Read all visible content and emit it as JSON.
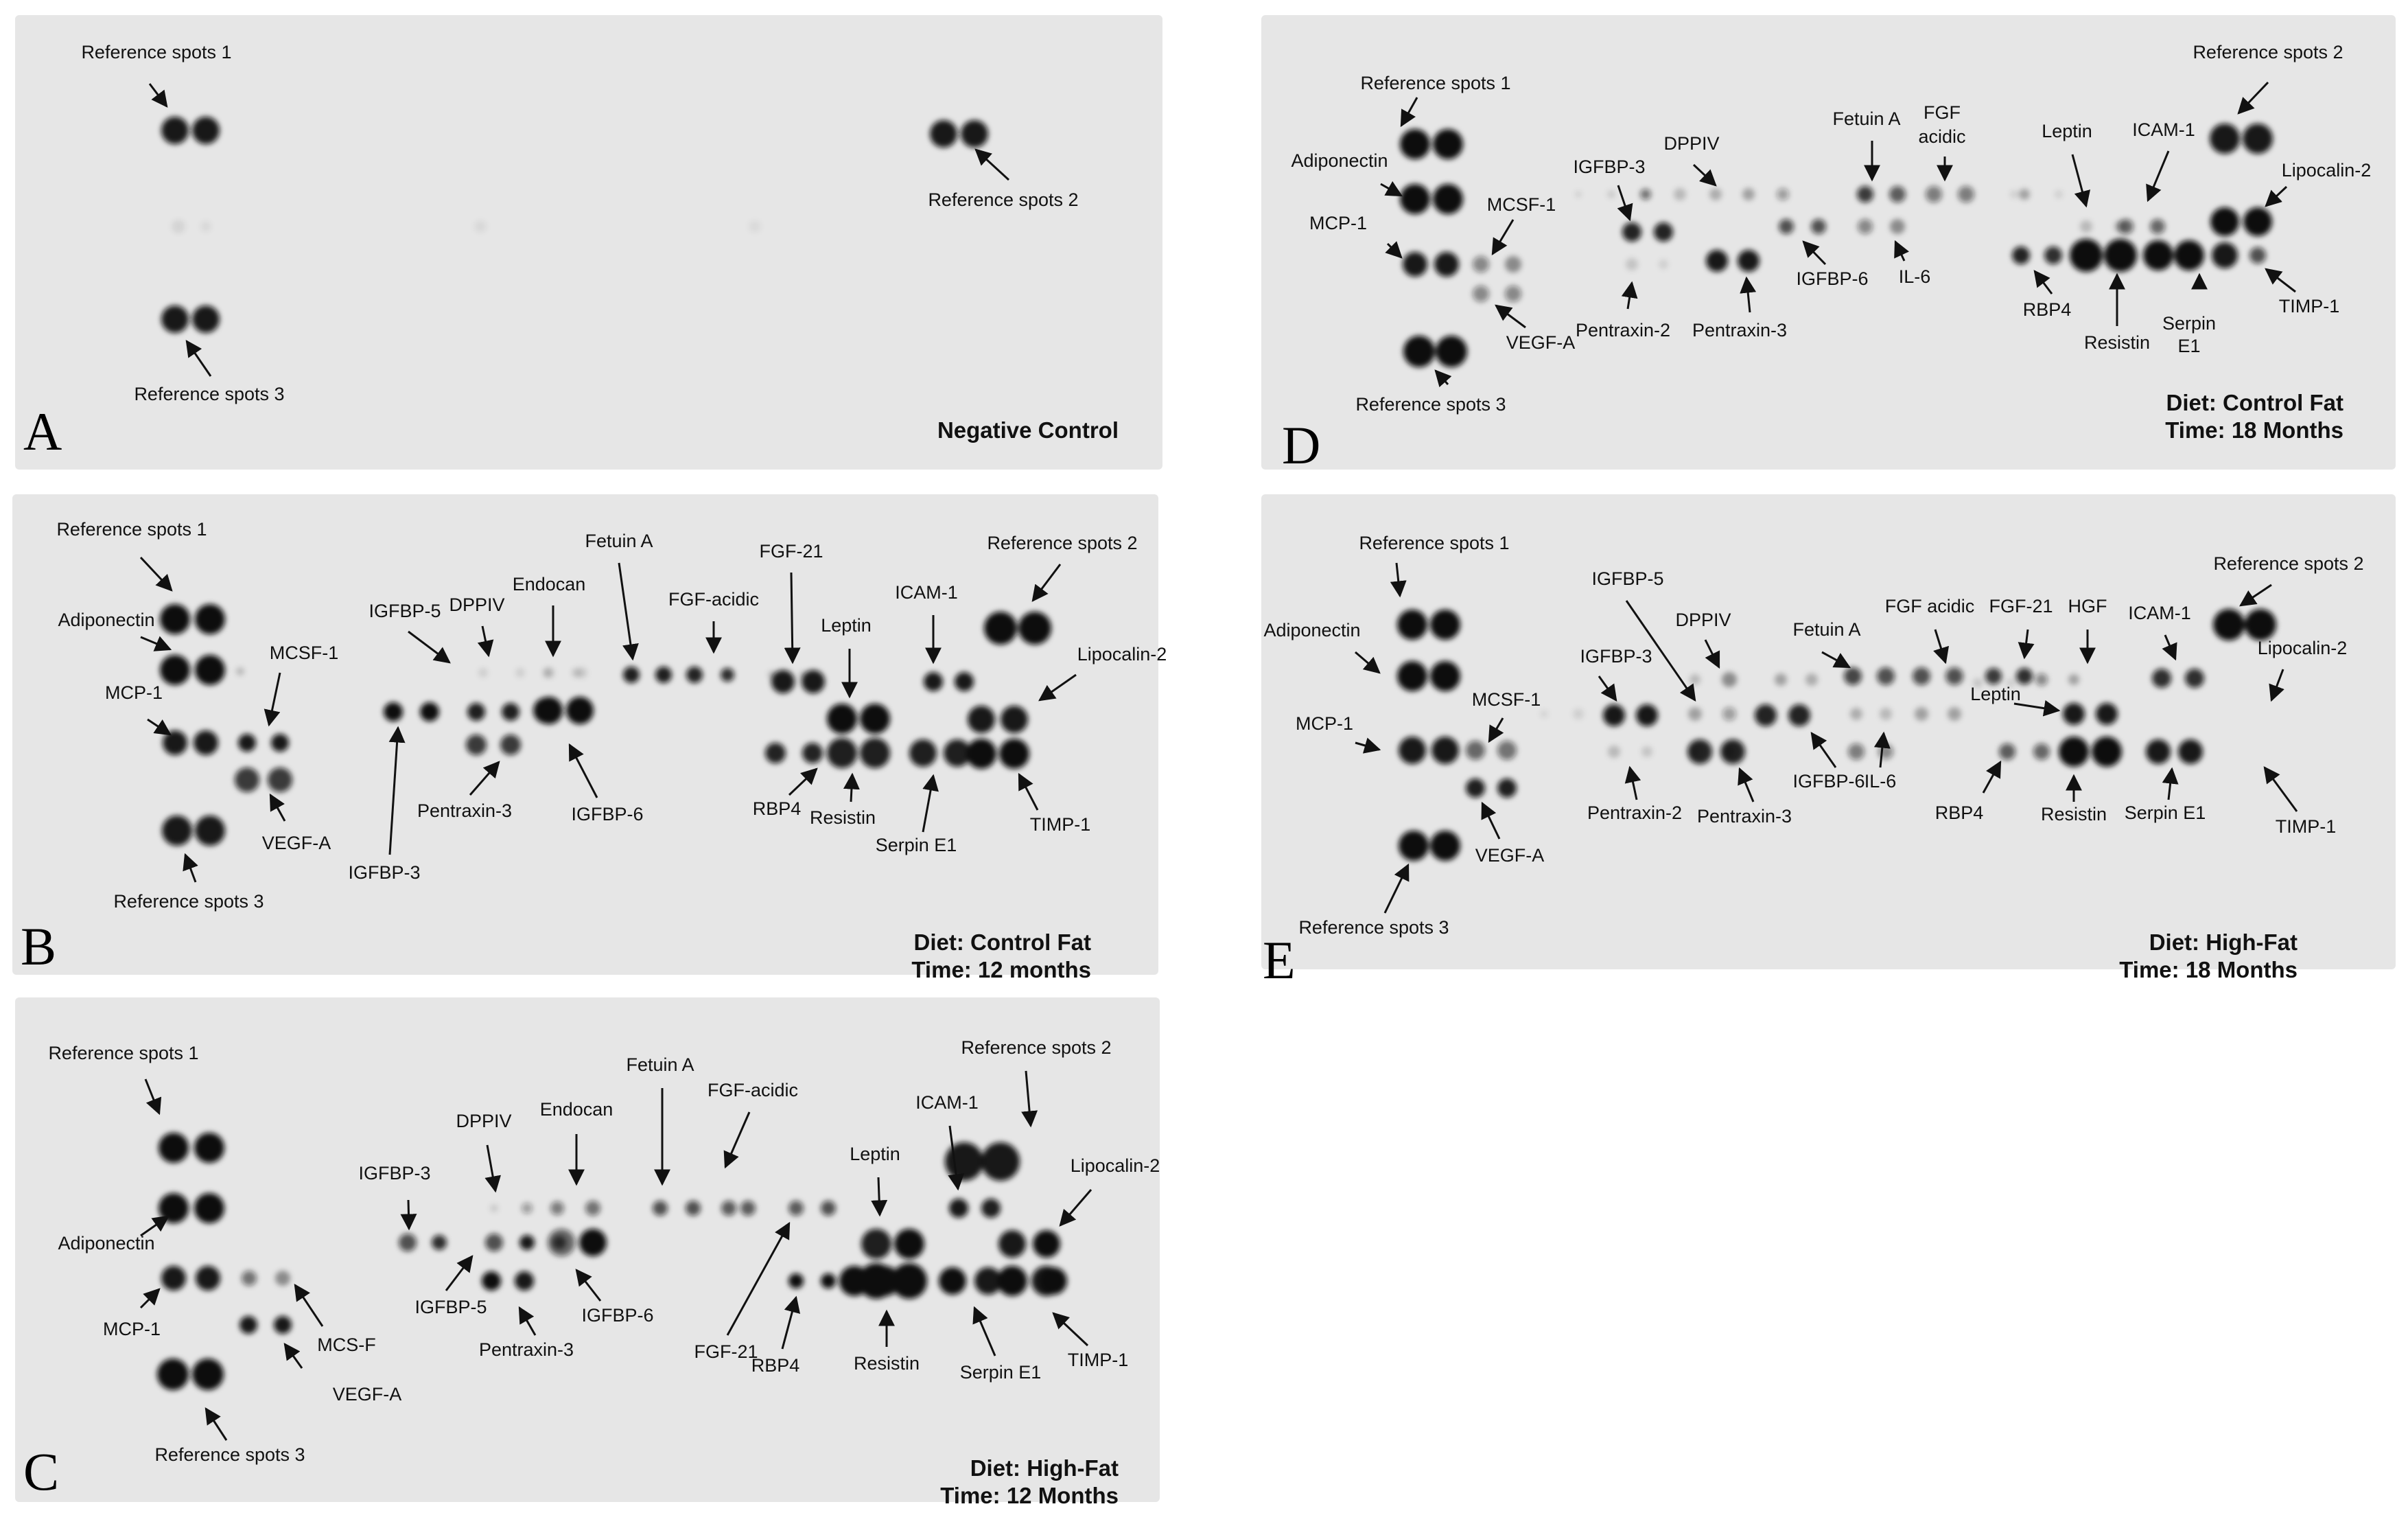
{
  "figure": {
    "colors": {
      "membrane": "#e6e6e6",
      "spot": "#101010",
      "arrow": "#111111",
      "text": "#111111",
      "page": "#ffffff"
    },
    "panels": [
      {
        "letter": "A",
        "caption_lines": [
          "Negative Control"
        ],
        "spots": [
          {
            "i": 0.95
          },
          {
            "i": 0.95
          },
          {
            "i": 0.95
          },
          {
            "i": 0.95
          },
          {
            "i": 0.95
          },
          {
            "i": 0.95
          },
          {
            "i": 0.08
          },
          {
            "i": 0.06
          },
          {
            "i": 0.06
          },
          {
            "i": 0.05
          }
        ],
        "labels": [
          {
            "text": "Reference spots 1"
          },
          {
            "text": "Reference spots 2"
          },
          {
            "text": "Reference spots 3"
          }
        ]
      },
      {
        "letter": "B",
        "caption_lines": [
          "Diet: Control Fat",
          "Time: 12 months"
        ],
        "spots": [
          {
            "i": 1
          },
          {
            "i": 1
          },
          {
            "i": 1
          },
          {
            "i": 1
          },
          {
            "i": 0.95
          },
          {
            "i": 0.95
          },
          {
            "i": 0.2
          },
          {
            "i": 0.95
          },
          {
            "i": 0.95
          },
          {
            "i": 0.8
          },
          {
            "i": 0.8
          },
          {
            "i": 0.95
          },
          {
            "i": 0.95
          },
          {
            "i": 1
          },
          {
            "i": 1
          },
          {
            "i": 0.1
          },
          {
            "i": 0.1
          },
          {
            "i": 0.12
          },
          {
            "i": 0.12
          },
          {
            "i": 0.15
          },
          {
            "i": 0.15
          },
          {
            "i": 0.92
          },
          {
            "i": 0.92
          },
          {
            "i": 0.8
          },
          {
            "i": 0.8
          },
          {
            "i": 0.95
          },
          {
            "i": 0.95
          },
          {
            "i": 1
          },
          {
            "i": 1
          },
          {
            "i": 0.92
          },
          {
            "i": 0.92
          },
          {
            "i": 0.9
          },
          {
            "i": 0.85
          },
          {
            "i": 0.2
          },
          {
            "i": 0.15
          },
          {
            "i": 0.95
          },
          {
            "i": 0.95
          },
          {
            "i": 0.95
          },
          {
            "i": 0.95
          },
          {
            "i": 0.9
          },
          {
            "i": 0.9
          },
          {
            "i": 1
          },
          {
            "i": 1
          },
          {
            "i": 0.92
          },
          {
            "i": 0.92
          },
          {
            "i": 0.92
          },
          {
            "i": 0.92
          },
          {
            "i": 1
          },
          {
            "i": 1
          },
          {
            "i": 0.95
          },
          {
            "i": 0.95
          },
          {
            "i": 1
          },
          {
            "i": 1
          }
        ],
        "labels": [
          {
            "text": "Reference spots 1"
          },
          {
            "text": "Adiponectin"
          },
          {
            "text": "MCP-1"
          },
          {
            "text": "MCSF-1"
          },
          {
            "text": "VEGF-A"
          },
          {
            "text": "Reference spots 3"
          },
          {
            "text": "IGFBP-5"
          },
          {
            "text": "DPPIV"
          },
          {
            "text": "Endocan"
          },
          {
            "text": "Fetuin A"
          },
          {
            "text": "FGF-acidic"
          },
          {
            "text": "FGF-21"
          },
          {
            "text": "Leptin"
          },
          {
            "text": "ICAM-1"
          },
          {
            "text": "Reference spots 2"
          },
          {
            "text": "Lipocalin-2"
          },
          {
            "text": "IGFBP-3"
          },
          {
            "text": "Pentraxin-3"
          },
          {
            "text": "IGFBP-6"
          },
          {
            "text": "RBP4"
          },
          {
            "text": "Resistin"
          },
          {
            "text": "Serpin E1"
          },
          {
            "text": "TIMP-1"
          }
        ]
      },
      {
        "letter": "C",
        "caption_lines": [
          "Diet: High-Fat",
          "Time: 12 Months"
        ],
        "spots": [
          {
            "i": 1
          },
          {
            "i": 1
          },
          {
            "i": 1
          },
          {
            "i": 1
          },
          {
            "i": 0.95
          },
          {
            "i": 0.95
          },
          {
            "i": 0.55
          },
          {
            "i": 0.4
          },
          {
            "i": 0.95
          },
          {
            "i": 0.95
          },
          {
            "i": 1
          },
          {
            "i": 1
          },
          {
            "i": 0.12
          },
          {
            "i": 0.35
          },
          {
            "i": 0.5
          },
          {
            "i": 0.55
          },
          {
            "i": 0.7
          },
          {
            "i": 0.7
          },
          {
            "i": 0.65
          },
          {
            "i": 0.65
          },
          {
            "i": 0.65
          },
          {
            "i": 0.7
          },
          {
            "i": 0.7
          },
          {
            "i": 0.85
          },
          {
            "i": 0.7
          },
          {
            "i": 0.95
          },
          {
            "i": 0.7
          },
          {
            "i": 0.6
          },
          {
            "i": 1
          },
          {
            "i": 1
          },
          {
            "i": 0.95
          },
          {
            "i": 0.95
          },
          {
            "i": 0.95
          },
          {
            "i": 0.95
          },
          {
            "i": 0.92
          },
          {
            "i": 0.92
          },
          {
            "i": 1
          },
          {
            "i": 1
          },
          {
            "i": 1
          },
          {
            "i": 1
          },
          {
            "i": 1
          },
          {
            "i": 1
          },
          {
            "i": 0.95
          },
          {
            "i": 0.95
          },
          {
            "i": 1
          },
          {
            "i": 1
          },
          {
            "i": 0.95
          },
          {
            "i": 0.95
          },
          {
            "i": 1
          },
          {
            "i": 1
          }
        ],
        "labels": [
          {
            "text": "Reference spots 1"
          },
          {
            "text": "Adiponectin"
          },
          {
            "text": "MCP-1"
          },
          {
            "text": "MCS-F"
          },
          {
            "text": "VEGF-A"
          },
          {
            "text": "Reference spots 3"
          },
          {
            "text": "IGFBP-3"
          },
          {
            "text": "DPPIV"
          },
          {
            "text": "Endocan"
          },
          {
            "text": "Fetuin A"
          },
          {
            "text": "FGF-acidic"
          },
          {
            "text": "IGFBP-5"
          },
          {
            "text": "Pentraxin-3"
          },
          {
            "text": "IGFBP-6"
          },
          {
            "text": "FGF-21"
          },
          {
            "text": "RBP4"
          },
          {
            "text": "Leptin"
          },
          {
            "text": "Resistin"
          },
          {
            "text": "ICAM-1"
          },
          {
            "text": "Serpin E1"
          },
          {
            "text": "Reference spots 2"
          },
          {
            "text": "Lipocalin-2"
          },
          {
            "text": "TIMP-1"
          }
        ]
      },
      {
        "letter": "D",
        "caption_lines": [
          "Diet: Control Fat",
          "Time: 18 Months"
        ],
        "spots": [
          {
            "i": 1
          },
          {
            "i": 1
          },
          {
            "i": 1
          },
          {
            "i": 1
          },
          {
            "i": 0.95
          },
          {
            "i": 0.95
          },
          {
            "i": 0.45
          },
          {
            "i": 0.4
          },
          {
            "i": 0.45
          },
          {
            "i": 0.45
          },
          {
            "i": 1
          },
          {
            "i": 1
          },
          {
            "i": 0.1
          },
          {
            "i": 0.12
          },
          {
            "i": 0.55
          },
          {
            "i": 0.2
          },
          {
            "i": 0.25
          },
          {
            "i": 0.3
          },
          {
            "i": 0.35
          },
          {
            "i": 0.8
          },
          {
            "i": 0.65
          },
          {
            "i": 0.5
          },
          {
            "i": 0.5
          },
          {
            "i": 0.1
          },
          {
            "i": 0.9
          },
          {
            "i": 0.9
          },
          {
            "i": 0.7
          },
          {
            "i": 0.7
          },
          {
            "i": 0.15
          },
          {
            "i": 0.1
          },
          {
            "i": 0.95
          },
          {
            "i": 0.95
          },
          {
            "i": 0.45
          },
          {
            "i": 0.4
          },
          {
            "i": 0.3
          },
          {
            "i": 0.1
          },
          {
            "i": 0.2
          },
          {
            "i": 0.25
          },
          {
            "i": 0.9
          },
          {
            "i": 0.85
          },
          {
            "i": 1
          },
          {
            "i": 1
          },
          {
            "i": 0.6
          },
          {
            "i": 0.6
          },
          {
            "i": 1
          },
          {
            "i": 1
          },
          {
            "i": 0.95
          },
          {
            "i": 0.95
          },
          {
            "i": 1
          },
          {
            "i": 1
          },
          {
            "i": 0.95
          },
          {
            "i": 0.7
          }
        ],
        "labels": [
          {
            "text": "Reference spots 1"
          },
          {
            "text": "Adiponectin"
          },
          {
            "text": "MCP-1"
          },
          {
            "text": "MCSF-1"
          },
          {
            "text": "VEGF-A"
          },
          {
            "text": "Reference spots 3"
          },
          {
            "text": "IGFBP-3"
          },
          {
            "text": "DPPIV"
          },
          {
            "text": "Pentraxin-2"
          },
          {
            "text": "Pentraxin-3"
          },
          {
            "text": "IGFBP-6"
          },
          {
            "text": "Fetuin A"
          },
          {
            "text": "FGF"
          },
          {
            "text": "acidic"
          },
          {
            "text": "IL-6"
          },
          {
            "text": "Leptin"
          },
          {
            "text": "ICAM-1"
          },
          {
            "text": "Reference spots 2"
          },
          {
            "text": "Lipocalin-2"
          },
          {
            "text": "RBP4"
          },
          {
            "text": "Resistin"
          },
          {
            "text": "Serpin"
          },
          {
            "text": "E1"
          },
          {
            "text": "TIMP-1"
          }
        ]
      },
      {
        "letter": "E",
        "caption_lines": [
          "Diet: High-Fat",
          "Time: 18 Months"
        ],
        "spots": [
          {
            "i": 1
          },
          {
            "i": 1
          },
          {
            "i": 1
          },
          {
            "i": 1
          },
          {
            "i": 0.95
          },
          {
            "i": 0.95
          },
          {
            "i": 0.6
          },
          {
            "i": 0.55
          },
          {
            "i": 0.92
          },
          {
            "i": 0.92
          },
          {
            "i": 1
          },
          {
            "i": 1
          },
          {
            "i": 0.08
          },
          {
            "i": 0.1
          },
          {
            "i": 0.12
          },
          {
            "i": 0.15
          },
          {
            "i": 0.2
          },
          {
            "i": 0.4
          },
          {
            "i": 0.3
          },
          {
            "i": 0.35
          },
          {
            "i": 0.3
          },
          {
            "i": 0.4
          },
          {
            "i": 0.75
          },
          {
            "i": 0.7
          },
          {
            "i": 0.7
          },
          {
            "i": 0.65
          },
          {
            "i": 0.3
          },
          {
            "i": 0.3
          },
          {
            "i": 0.25
          },
          {
            "i": 0.2
          },
          {
            "i": 0.2
          },
          {
            "i": 0.8
          },
          {
            "i": 0.85
          },
          {
            "i": 0.95
          },
          {
            "i": 0.95
          },
          {
            "i": 0.2
          },
          {
            "i": 0.15
          },
          {
            "i": 0.9
          },
          {
            "i": 0.9
          },
          {
            "i": 0.5
          },
          {
            "i": 0.45
          },
          {
            "i": 0.3
          },
          {
            "i": 0.25
          },
          {
            "i": 0.9
          },
          {
            "i": 0.9
          },
          {
            "i": 0.15
          },
          {
            "i": 0.1
          },
          {
            "i": 0.95
          },
          {
            "i": 0.95
          },
          {
            "i": 0.85
          },
          {
            "i": 0.85
          },
          {
            "i": 0.45
          },
          {
            "i": 0.3
          },
          {
            "i": 0.65
          },
          {
            "i": 0.6
          },
          {
            "i": 1
          },
          {
            "i": 1
          },
          {
            "i": 0.95
          },
          {
            "i": 0.95
          },
          {
            "i": 1
          },
          {
            "i": 1
          }
        ],
        "labels": [
          {
            "text": "Reference spots 1"
          },
          {
            "text": "Adiponectin"
          },
          {
            "text": "MCP-1"
          },
          {
            "text": "MCSF-1"
          },
          {
            "text": "VEGF-A"
          },
          {
            "text": "Reference spots 3"
          },
          {
            "text": "IGFBP-5"
          },
          {
            "text": "IGFBP-3"
          },
          {
            "text": "DPPIV"
          },
          {
            "text": "Pentraxin-2"
          },
          {
            "text": "Pentraxin-3"
          },
          {
            "text": "IGFBP-6"
          },
          {
            "text": "Fetuin A"
          },
          {
            "text": "FGF acidic"
          },
          {
            "text": "IL-6"
          },
          {
            "text": "FGF-21"
          },
          {
            "text": "HGF"
          },
          {
            "text": "Leptin"
          },
          {
            "text": "ICAM-1"
          },
          {
            "text": "RBP4"
          },
          {
            "text": "Resistin"
          },
          {
            "text": "Serpin E1"
          },
          {
            "text": "Reference spots 2"
          },
          {
            "text": "Lipocalin-2"
          },
          {
            "text": "TIMP-1"
          }
        ]
      }
    ]
  }
}
